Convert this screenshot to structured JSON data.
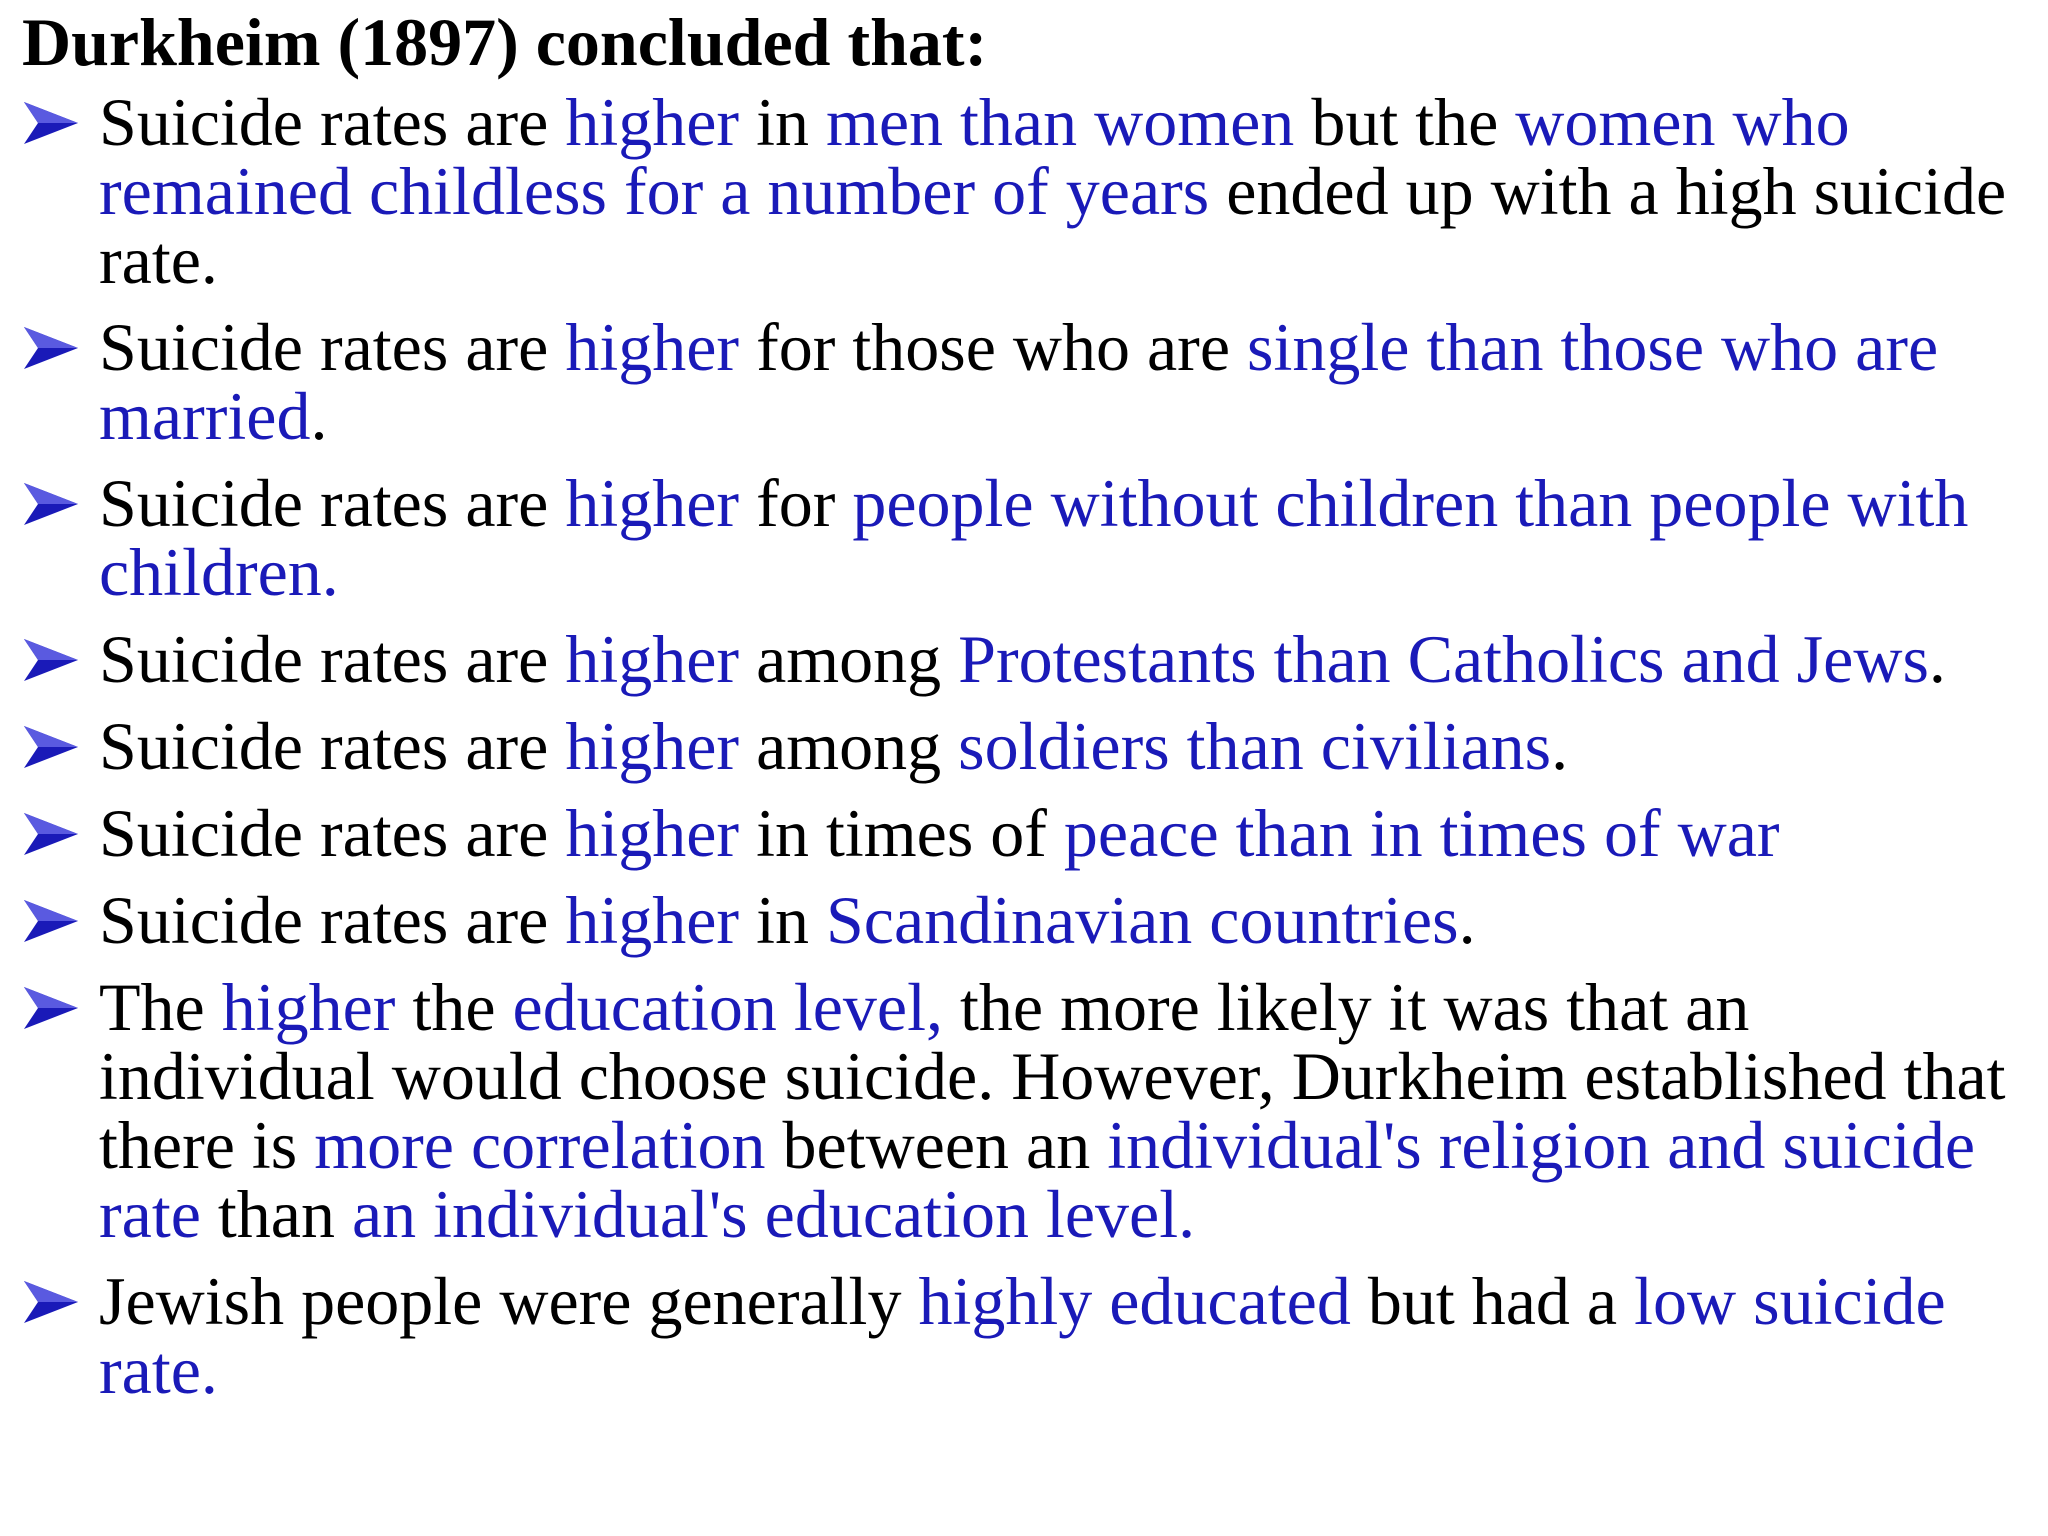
{
  "title": "Durkheim (1897) concluded that:",
  "colors": {
    "text": "#000000",
    "highlight": "#1a1ab8",
    "arrow": "#1a1ab8"
  },
  "bullet_icon": "arrowhead-bullet-icon",
  "bullets": [
    {
      "segments": [
        {
          "text": "Suicide rates are ",
          "color": "black"
        },
        {
          "text": "higher",
          "color": "blue"
        },
        {
          "text": " in ",
          "color": "black"
        },
        {
          "text": "men than women",
          "color": "blue"
        },
        {
          "text": " but the ",
          "color": "black"
        },
        {
          "text": "women who remained childless for a number of years",
          "color": "blue"
        },
        {
          "text": " ended up with a high suicide rate.",
          "color": "black"
        }
      ]
    },
    {
      "segments": [
        {
          "text": "Suicide rates are ",
          "color": "black"
        },
        {
          "text": "higher",
          "color": "blue"
        },
        {
          "text": " for those who are ",
          "color": "black"
        },
        {
          "text": "single than those who are married",
          "color": "blue"
        },
        {
          "text": ".",
          "color": "black"
        }
      ]
    },
    {
      "segments": [
        {
          "text": "Suicide rates are ",
          "color": "black"
        },
        {
          "text": "higher",
          "color": "blue"
        },
        {
          "text": " for ",
          "color": "black"
        },
        {
          "text": "people without children than people with children.",
          "color": "blue"
        }
      ]
    },
    {
      "segments": [
        {
          "text": "Suicide rates are ",
          "color": "black"
        },
        {
          "text": "higher",
          "color": "blue"
        },
        {
          "text": " among ",
          "color": "black"
        },
        {
          "text": "Protestants than Catholics and Jews",
          "color": "blue"
        },
        {
          "text": ".",
          "color": "black"
        }
      ]
    },
    {
      "segments": [
        {
          "text": "Suicide rates are ",
          "color": "black"
        },
        {
          "text": "higher",
          "color": "blue"
        },
        {
          "text": " among ",
          "color": "black"
        },
        {
          "text": "soldiers than civilians",
          "color": "blue"
        },
        {
          "text": ".",
          "color": "black"
        }
      ]
    },
    {
      "segments": [
        {
          "text": "Suicide rates are ",
          "color": "black"
        },
        {
          "text": "higher",
          "color": "blue"
        },
        {
          "text": " in times of ",
          "color": "black"
        },
        {
          "text": "peace than in times of war",
          "color": "blue"
        }
      ]
    },
    {
      "segments": [
        {
          "text": "Suicide rates are ",
          "color": "black"
        },
        {
          "text": "higher",
          "color": "blue"
        },
        {
          "text": " in ",
          "color": "black"
        },
        {
          "text": "Scandinavian countries",
          "color": "blue"
        },
        {
          "text": ".",
          "color": "black"
        }
      ]
    },
    {
      "segments": [
        {
          "text": "The ",
          "color": "black"
        },
        {
          "text": "higher",
          "color": "blue"
        },
        {
          "text": " the ",
          "color": "black"
        },
        {
          "text": "education level,",
          "color": "blue"
        },
        {
          "text": " the more likely it was that an individual would choose suicide. However, Durkheim established that there is ",
          "color": "black"
        },
        {
          "text": "more correlation",
          "color": "blue"
        },
        {
          "text": " between an ",
          "color": "black"
        },
        {
          "text": "individual's religion and suicide rate",
          "color": "blue"
        },
        {
          "text": " than ",
          "color": "black"
        },
        {
          "text": "an individual's education level.",
          "color": "blue"
        }
      ]
    },
    {
      "segments": [
        {
          "text": "Jewish people were generally ",
          "color": "black"
        },
        {
          "text": "highly educated",
          "color": "blue"
        },
        {
          "text": " but had a ",
          "color": "black"
        },
        {
          "text": "low suicide rate.",
          "color": "blue"
        }
      ]
    }
  ]
}
